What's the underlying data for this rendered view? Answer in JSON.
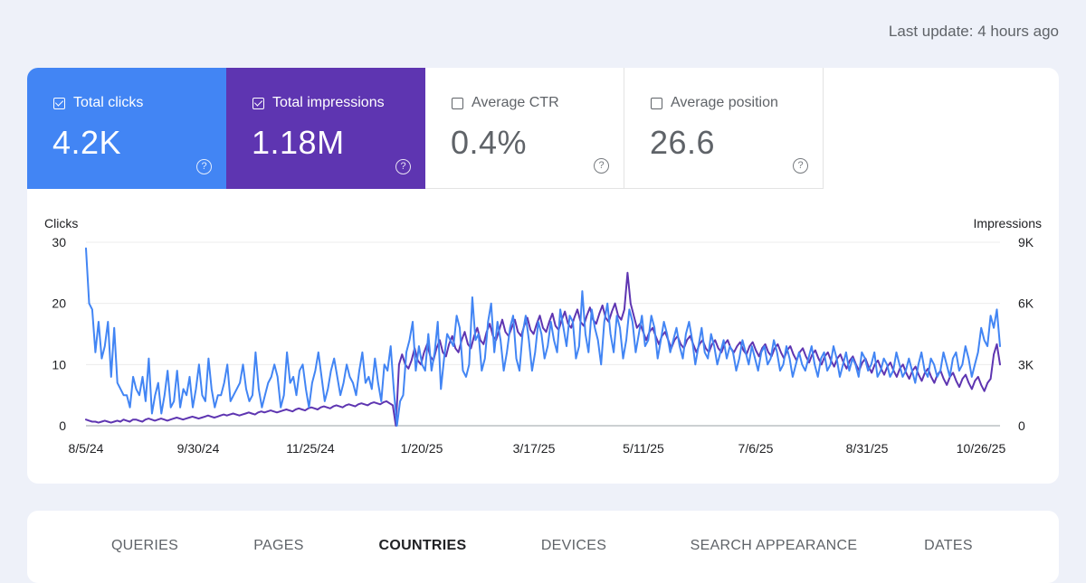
{
  "header": {
    "last_update": "Last update: 4 hours ago"
  },
  "metrics": [
    {
      "label": "Total clicks",
      "value": "4.2K",
      "checked": true,
      "color": "#4285f4"
    },
    {
      "label": "Total impressions",
      "value": "1.18M",
      "checked": true,
      "color": "#5e35b1"
    },
    {
      "label": "Average CTR",
      "value": "0.4%",
      "checked": false
    },
    {
      "label": "Average position",
      "value": "26.6",
      "checked": false
    }
  ],
  "help_icon": "question-circle-icon",
  "chart_data": {
    "type": "line",
    "left_axis_title": "Clicks",
    "right_axis_title": "Impressions",
    "left_ylim": [
      0,
      30
    ],
    "right_ylim": [
      0,
      9000
    ],
    "left_ticks": [
      "30",
      "20",
      "10",
      "0"
    ],
    "right_ticks": [
      "9K",
      "6K",
      "3K",
      "0"
    ],
    "x_tick_labels": [
      "8/5/24",
      "9/30/24",
      "11/25/24",
      "1/20/25",
      "3/17/25",
      "5/11/25",
      "7/6/25",
      "8/31/25",
      "10/26/25"
    ],
    "x_range": [
      "8/5/24",
      "11/1/25"
    ],
    "series": [
      {
        "name": "Total clicks",
        "axis": "left",
        "color": "#4285f4",
        "values": [
          29,
          20,
          19,
          12,
          17,
          11,
          13,
          17,
          8,
          16,
          7,
          6,
          5,
          5,
          3,
          8,
          6,
          5,
          8,
          4,
          11,
          2,
          5,
          7,
          2,
          5,
          9,
          3,
          4,
          9,
          3,
          6,
          5,
          8,
          3,
          6,
          10,
          5,
          4,
          11,
          6,
          3,
          5,
          5,
          7,
          10,
          4,
          5,
          6,
          7,
          10,
          6,
          4,
          5,
          12,
          6,
          3,
          5,
          7,
          8,
          10,
          8,
          3,
          5,
          12,
          7,
          8,
          5,
          9,
          10,
          6,
          3,
          7,
          9,
          12,
          8,
          4,
          6,
          9,
          11,
          8,
          5,
          7,
          10,
          8,
          7,
          5,
          9,
          12,
          7,
          8,
          6,
          11,
          7,
          4,
          10,
          9,
          13,
          6,
          0,
          4,
          5,
          12,
          14,
          17,
          9,
          13,
          10,
          9,
          15,
          9,
          12,
          17,
          6,
          11,
          15,
          14,
          13,
          18,
          16,
          9,
          8,
          10,
          21,
          14,
          15,
          9,
          11,
          17,
          20,
          12,
          17,
          14,
          9,
          12,
          16,
          18,
          11,
          9,
          15,
          18,
          14,
          9,
          12,
          17,
          15,
          11,
          13,
          17,
          14,
          12,
          19,
          16,
          13,
          18,
          17,
          11,
          13,
          22,
          15,
          12,
          19,
          16,
          14,
          10,
          17,
          20,
          15,
          12,
          18,
          16,
          11,
          14,
          19,
          17,
          12,
          15,
          18,
          13,
          14,
          18,
          16,
          11,
          14,
          17,
          15,
          12,
          14,
          16,
          13,
          11,
          15,
          17,
          14,
          10,
          13,
          16,
          12,
          11,
          15,
          13,
          10,
          12,
          14,
          11,
          13,
          12,
          9,
          11,
          14,
          12,
          10,
          13,
          11,
          9,
          12,
          13,
          10,
          11,
          14,
          12,
          9,
          10,
          13,
          11,
          8,
          10,
          12,
          10,
          9,
          11,
          13,
          10,
          8,
          11,
          12,
          9,
          10,
          13,
          11,
          8,
          10,
          12,
          9,
          11,
          10,
          8,
          12,
          11,
          9,
          10,
          12,
          8,
          9,
          11,
          10,
          8,
          9,
          12,
          10,
          8,
          9,
          11,
          9,
          7,
          10,
          12,
          9,
          8,
          11,
          10,
          8,
          9,
          12,
          10,
          8,
          11,
          12,
          9,
          10,
          13,
          11,
          8,
          10,
          12,
          16,
          14,
          13,
          18,
          16,
          19,
          13
        ]
      },
      {
        "name": "Total impressions",
        "axis": "right",
        "color": "#5e35b1",
        "values": [
          300,
          250,
          200,
          200,
          150,
          200,
          250,
          200,
          150,
          200,
          250,
          200,
          300,
          250,
          200,
          300,
          300,
          250,
          200,
          300,
          350,
          300,
          250,
          300,
          350,
          300,
          250,
          300,
          350,
          400,
          350,
          300,
          350,
          400,
          450,
          400,
          350,
          400,
          450,
          500,
          450,
          400,
          450,
          500,
          550,
          500,
          550,
          600,
          550,
          500,
          550,
          600,
          650,
          600,
          550,
          650,
          700,
          650,
          700,
          750,
          700,
          650,
          700,
          750,
          800,
          750,
          700,
          800,
          850,
          800,
          750,
          850,
          900,
          850,
          800,
          900,
          950,
          900,
          850,
          950,
          1000,
          950,
          900,
          1000,
          1050,
          1000,
          950,
          1050,
          1100,
          1050,
          1000,
          1100,
          1150,
          1100,
          1050,
          1150,
          1200,
          1100,
          1000,
          0,
          3000,
          3500,
          3000,
          2800,
          3200,
          3800,
          3200,
          3000,
          3600,
          4000,
          3400,
          3200,
          3800,
          4200,
          3600,
          3400,
          4000,
          4400,
          3800,
          3600,
          4200,
          4600,
          4000,
          3800,
          4400,
          4800,
          4200,
          4000,
          4600,
          5000,
          4400,
          4200,
          4700,
          5200,
          4600,
          4400,
          4800,
          5200,
          4600,
          4400,
          4900,
          5300,
          4700,
          4500,
          5000,
          5400,
          4800,
          4600,
          5100,
          5500,
          4900,
          4700,
          5200,
          5600,
          5000,
          4800,
          5300,
          5700,
          5100,
          4900,
          5400,
          5800,
          5200,
          5000,
          5500,
          5900,
          5300,
          5100,
          5600,
          6000,
          5400,
          5200,
          5700,
          7500,
          6000,
          5400,
          4800,
          5000,
          4600,
          4200,
          4600,
          4800,
          4400,
          4000,
          4400,
          4600,
          4200,
          3800,
          4200,
          4400,
          4000,
          3800,
          4200,
          4400,
          4000,
          3600,
          4000,
          4200,
          3800,
          3600,
          4000,
          4200,
          3800,
          3600,
          4000,
          4200,
          3800,
          3600,
          3900,
          4100,
          3700,
          3500,
          3900,
          4100,
          3700,
          3400,
          3800,
          4000,
          3600,
          3400,
          3800,
          4000,
          3600,
          3300,
          3700,
          3900,
          3500,
          3200,
          3600,
          3800,
          3400,
          3100,
          3500,
          3700,
          3300,
          3000,
          3400,
          3600,
          3200,
          2900,
          3300,
          3500,
          3100,
          2800,
          3200,
          3400,
          3000,
          2700,
          3100,
          3300,
          2900,
          2600,
          3000,
          3200,
          2800,
          2500,
          2900,
          3100,
          2700,
          2400,
          2800,
          3000,
          2600,
          2300,
          2700,
          2900,
          2500,
          2200,
          2600,
          2800,
          2400,
          2100,
          2500,
          2700,
          2300,
          2000,
          2400,
          2600,
          2200,
          1900,
          2300,
          2500,
          2100,
          1800,
          2200,
          2400,
          2000,
          1700,
          2100,
          2300,
          3500,
          4000,
          3000
        ]
      }
    ]
  },
  "tabs": [
    {
      "label": "QUERIES",
      "active": false
    },
    {
      "label": "PAGES",
      "active": false
    },
    {
      "label": "COUNTRIES",
      "active": true
    },
    {
      "label": "DEVICES",
      "active": false
    },
    {
      "label": "SEARCH APPEARANCE",
      "active": false
    },
    {
      "label": "DATES",
      "active": false
    }
  ]
}
